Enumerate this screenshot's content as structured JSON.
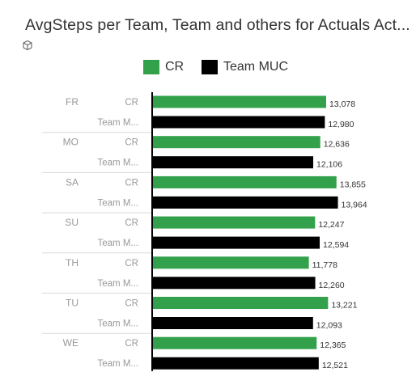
{
  "title": "AvgSteps per Team, Team and others for Actuals Act...",
  "icons": {
    "header": "cube-icon"
  },
  "colors": {
    "CR": "#33a14b",
    "Team MUC": "#000000"
  },
  "chart_data": {
    "type": "bar",
    "orientation": "horizontal",
    "title": "AvgSteps per Team, Team and others for Actuals Act...",
    "legend": {
      "placement": "top-center",
      "entries": [
        "CR",
        "Team MUC"
      ]
    },
    "xlim": [
      0,
      14600
    ],
    "grid": false,
    "groups": [
      "FR",
      "MO",
      "SA",
      "SU",
      "TH",
      "TU",
      "WE"
    ],
    "series": [
      {
        "name": "CR",
        "tick_label": "CR",
        "color": "#33a14b",
        "values": [
          13078,
          12636,
          13855,
          12247,
          11778,
          13221,
          12365
        ],
        "labels": [
          "13,078",
          "12,636",
          "13,855",
          "12,247",
          "11,778",
          "13,221",
          "12,365"
        ]
      },
      {
        "name": "Team MUC",
        "tick_label": "Team M...",
        "color": "#000000",
        "values": [
          12980,
          12106,
          13964,
          12594,
          12260,
          12093,
          12521
        ],
        "labels": [
          "12,980",
          "12,106",
          "13,964",
          "12,594",
          "12,260",
          "12,093",
          "12,521"
        ]
      }
    ]
  }
}
